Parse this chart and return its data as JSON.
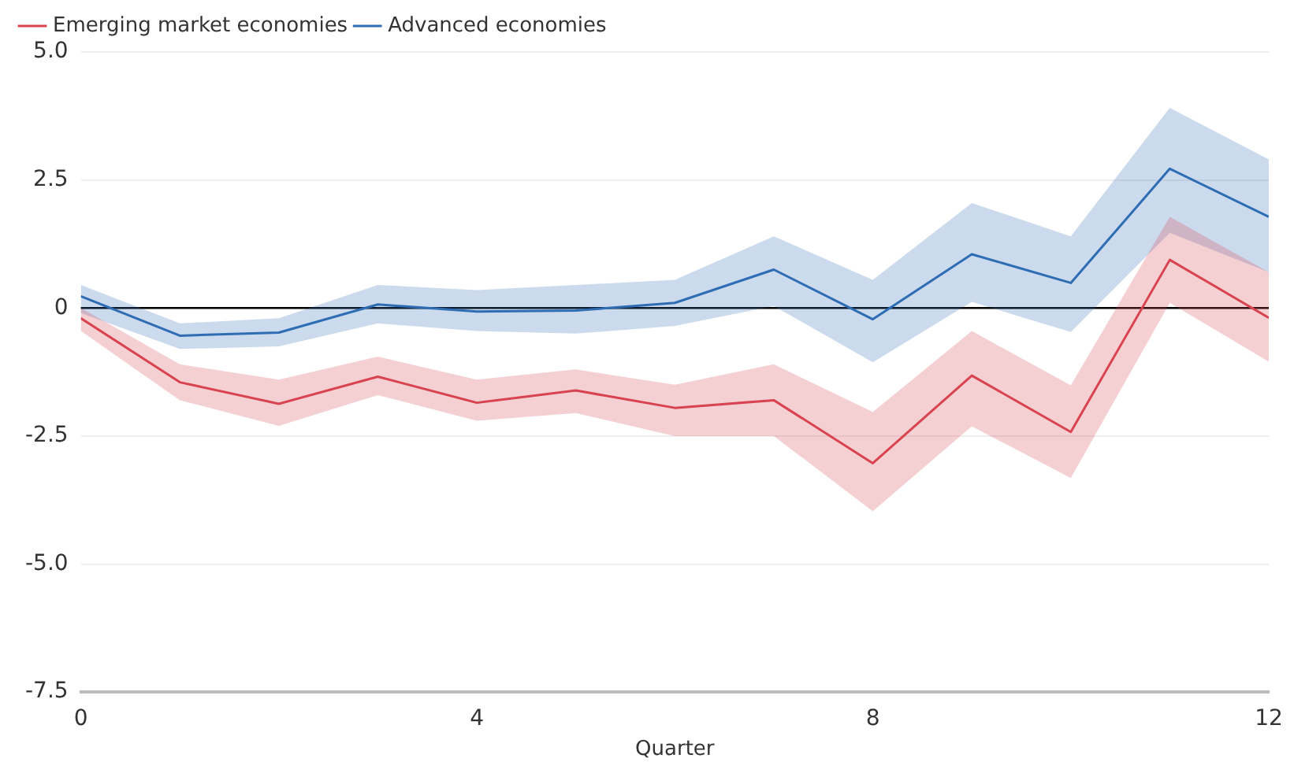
{
  "chart_data": {
    "type": "line",
    "xlabel": "Quarter",
    "x": [
      0,
      1,
      2,
      3,
      4,
      5,
      6,
      7,
      8,
      9,
      10,
      11,
      12
    ],
    "series": [
      {
        "name": "Emerging market economies",
        "color": "#d9434f",
        "values": [
          -0.2,
          -1.45,
          -1.87,
          -1.34,
          -1.85,
          -1.61,
          -1.95,
          -1.8,
          -3.03,
          -1.32,
          -2.42,
          0.94,
          -0.19
        ],
        "lower": [
          -0.45,
          -1.8,
          -2.3,
          -1.7,
          -2.2,
          -2.05,
          -2.5,
          -2.5,
          -3.97,
          -2.31,
          -3.32,
          0.1,
          -1.05
        ],
        "upper": [
          0.0,
          -1.1,
          -1.4,
          -0.95,
          -1.4,
          -1.2,
          -1.5,
          -1.1,
          -2.03,
          -0.45,
          -1.51,
          1.78,
          0.7
        ]
      },
      {
        "name": "Advanced economies",
        "color": "#2e6db4",
        "values": [
          0.23,
          -0.54,
          -0.48,
          0.07,
          -0.07,
          -0.05,
          0.1,
          0.75,
          -0.22,
          1.05,
          0.49,
          2.72,
          1.78
        ],
        "lower": [
          -0.1,
          -0.8,
          -0.75,
          -0.3,
          -0.45,
          -0.5,
          -0.35,
          0.04,
          -1.06,
          0.12,
          -0.47,
          1.47,
          0.7
        ],
        "upper": [
          0.45,
          -0.3,
          -0.2,
          0.45,
          0.35,
          0.45,
          0.55,
          1.4,
          0.55,
          2.05,
          1.4,
          3.91,
          2.9
        ]
      }
    ],
    "xlim": [
      0,
      12
    ],
    "xticks": [
      0,
      4,
      8,
      12
    ],
    "ylim": [
      -7.5,
      5
    ],
    "yticks": [
      {
        "value": -7.5,
        "label": "-7.5"
      },
      {
        "value": -5,
        "label": "-5.0"
      },
      {
        "value": -2.5,
        "label": "-2.5"
      },
      0,
      {
        "value": 2.5,
        "label": "2.5"
      },
      {
        "value": 5,
        "label": "5.0"
      }
    ],
    "ref_lines": [
      {
        "axis": "y",
        "value": 0,
        "color": "#000000"
      }
    ],
    "grid": "y",
    "legend": "top left",
    "marker": "none",
    "line_style": "solid"
  }
}
